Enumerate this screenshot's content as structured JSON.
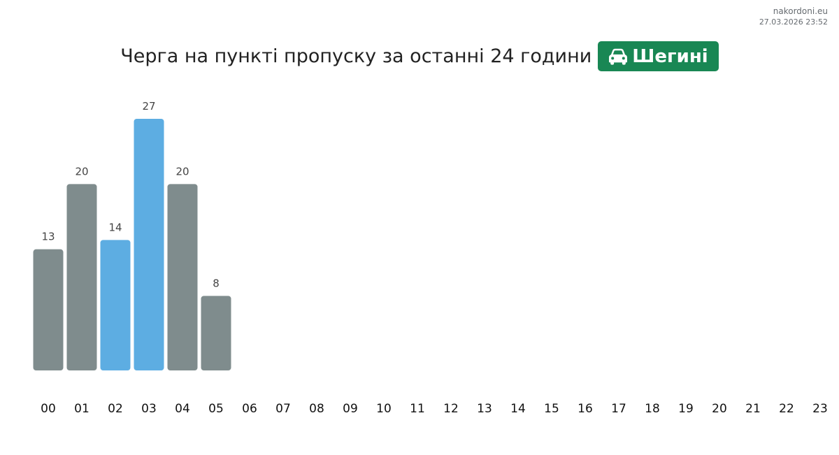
{
  "site": {
    "name": "nakordoni.eu",
    "timestamp": "27.03.2026 23:52"
  },
  "header": {
    "title": "Черга на пункті пропуску за останні 24 години",
    "place": "Шегині",
    "place_icon": "car-icon",
    "badge_color": "#198754"
  },
  "colors": {
    "bar_default": "#7f8c8d",
    "bar_highlight": "#5dade2"
  },
  "chart_data": {
    "type": "bar",
    "categories": [
      "00",
      "01",
      "02",
      "03",
      "04",
      "05",
      "06",
      "07",
      "08",
      "09",
      "10",
      "11",
      "12",
      "13",
      "14",
      "15",
      "16",
      "17",
      "18",
      "19",
      "20",
      "21",
      "22",
      "23"
    ],
    "values": [
      13,
      20,
      14,
      27,
      20,
      8,
      null,
      null,
      null,
      null,
      null,
      null,
      null,
      null,
      null,
      null,
      null,
      null,
      null,
      null,
      null,
      null,
      null,
      null
    ],
    "highlighted": [
      false,
      false,
      true,
      true,
      false,
      false,
      false,
      false,
      false,
      false,
      false,
      false,
      false,
      false,
      false,
      false,
      false,
      false,
      false,
      false,
      false,
      false,
      false,
      false
    ],
    "title": "Черга на пункті пропуску за останні 24 години",
    "xlabel": "",
    "ylabel": "",
    "ylim": [
      0,
      27
    ],
    "grid": false,
    "legend": "none"
  }
}
